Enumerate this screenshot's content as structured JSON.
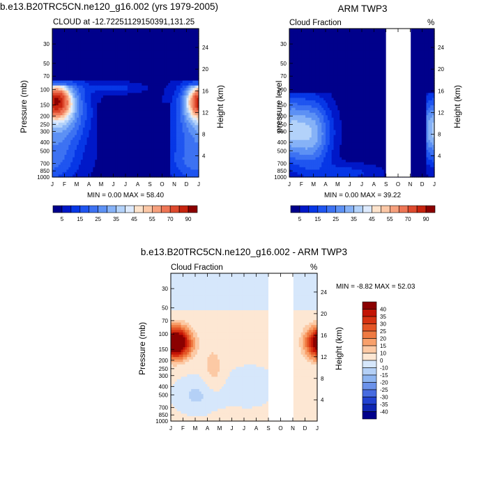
{
  "chart_data": [
    {
      "type": "heatmap",
      "title": "b.e13.B20TRC5CN.ne120_g16.002 (yrs 1979-2005)",
      "subtitle_left": "CLOUD at -12.72251129150391,131.25",
      "ylabel": "Pressure (mb)",
      "ylabel_right": "Height (km)",
      "xticks": [
        "J",
        "F",
        "M",
        "A",
        "M",
        "J",
        "J",
        "A",
        "S",
        "O",
        "N",
        "D",
        "J"
      ],
      "yticks": [
        "30",
        "50",
        "70",
        "100",
        "150",
        "200",
        "250",
        "300",
        "400",
        "500",
        "700",
        "850",
        "1000"
      ],
      "yticks_right": [
        "24",
        "20",
        "16",
        "12",
        "8",
        "4"
      ],
      "stats_label": "MIN =   0.00 MAX =  58.40",
      "colorbar_labels": [
        "5",
        "15",
        "25",
        "35",
        "45",
        "55",
        "70",
        "90"
      ],
      "field": "model"
    },
    {
      "type": "heatmap",
      "title": "ARM TWP3",
      "subtitle_left": "Cloud Fraction",
      "subtitle_right": "%",
      "ylabel": "pressure level",
      "ylabel_right": "Height (km)",
      "xticks": [
        "J",
        "F",
        "M",
        "A",
        "M",
        "J",
        "J",
        "A",
        "S",
        "O",
        "N",
        "D",
        "J"
      ],
      "yticks": [
        "30",
        "50",
        "70",
        "100",
        "150",
        "200",
        "250",
        "300",
        "400",
        "500",
        "700",
        "850",
        "1000"
      ],
      "yticks_right": [
        "24",
        "20",
        "16",
        "12",
        "8",
        "4"
      ],
      "stats_label": "MIN =   0.00 MAX =  39.22",
      "colorbar_labels": [
        "5",
        "15",
        "25",
        "35",
        "45",
        "55",
        "70",
        "90"
      ],
      "missing_months": [
        "S",
        "O",
        "N"
      ],
      "field": "obs"
    },
    {
      "type": "heatmap",
      "title": "b.e13.B20TRC5CN.ne120_g16.002 - ARM TWP3",
      "subtitle_left": "Cloud Fraction",
      "subtitle_right": "%",
      "ylabel": "Pressure (mb)",
      "ylabel_right": "Height (km)",
      "xticks": [
        "J",
        "F",
        "M",
        "A",
        "M",
        "J",
        "J",
        "A",
        "S",
        "O",
        "N",
        "D",
        "J"
      ],
      "yticks": [
        "30",
        "50",
        "70",
        "100",
        "150",
        "200",
        "250",
        "300",
        "400",
        "500",
        "700",
        "850",
        "1000"
      ],
      "yticks_right": [
        "24",
        "20",
        "16",
        "12",
        "8",
        "4"
      ],
      "stats_label": "MIN = -8.82 MAX =  52.03",
      "colorbar_labels": [
        "40",
        "35",
        "30",
        "25",
        "20",
        "15",
        "10",
        "0",
        "-10",
        "-15",
        "-20",
        "-25",
        "-30",
        "-35",
        "-40"
      ],
      "missing_months": [
        "S",
        "O",
        "N"
      ],
      "field": "diff"
    }
  ],
  "colors": {
    "seq": [
      "#00008b",
      "#0018c8",
      "#0737e6",
      "#1f55f0",
      "#3d72f2",
      "#5d91f4",
      "#86b2f7",
      "#b3d2fa",
      "#ddeafd",
      "#fde3cc",
      "#fbc7a6",
      "#f6a07d",
      "#ee7656",
      "#de4a2e",
      "#c7240f",
      "#8b0000"
    ],
    "diff": [
      "#8b0000",
      "#c31405",
      "#d63212",
      "#e45526",
      "#ef7a42",
      "#f8a06b",
      "#fcc9a4",
      "#fde7d3",
      "#d6e7fb",
      "#b4d0f6",
      "#8db4f0",
      "#6b92ea",
      "#476be0",
      "#2242d0",
      "#0f26b2",
      "#00008b"
    ]
  }
}
